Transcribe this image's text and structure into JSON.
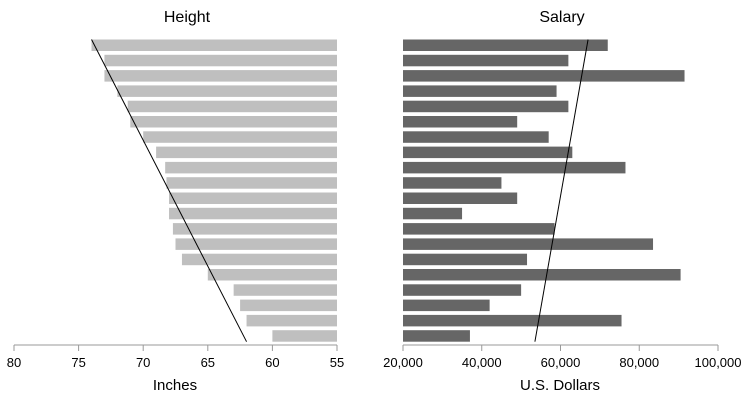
{
  "chart_data": [
    {
      "type": "bar",
      "orientation": "horizontal",
      "direction": "reversed-x",
      "title": "Height",
      "xlabel": "Inches",
      "xlim": [
        80,
        55
      ],
      "xticks": [
        80,
        75,
        70,
        65,
        60,
        55
      ],
      "xtick_labels": [
        "80",
        "75",
        "70",
        "65",
        "60",
        "55"
      ],
      "bar_color": "#bfbfbf",
      "values": [
        74,
        73,
        73,
        72,
        71.2,
        71,
        70,
        69,
        68.3,
        68.2,
        68,
        68,
        67.7,
        67.5,
        67,
        65,
        63,
        62.5,
        62,
        60
      ],
      "trendline": {
        "start": 74,
        "end": 62
      }
    },
    {
      "type": "bar",
      "orientation": "horizontal",
      "title": "Salary",
      "xlabel": "U.S. Dollars",
      "xlim": [
        20000,
        100000
      ],
      "xticks": [
        20000,
        40000,
        60000,
        80000,
        100000
      ],
      "xtick_labels": [
        "20,000",
        "40,000",
        "60,000",
        "80,000",
        "100,000"
      ],
      "bar_color": "#666666",
      "values": [
        72000,
        62000,
        91500,
        59000,
        62000,
        49000,
        57000,
        63000,
        76500,
        45000,
        49000,
        35000,
        58500,
        83500,
        51500,
        90500,
        50000,
        42000,
        75500,
        37000
      ],
      "trendline": {
        "start": 67000,
        "end": 53500
      }
    }
  ]
}
